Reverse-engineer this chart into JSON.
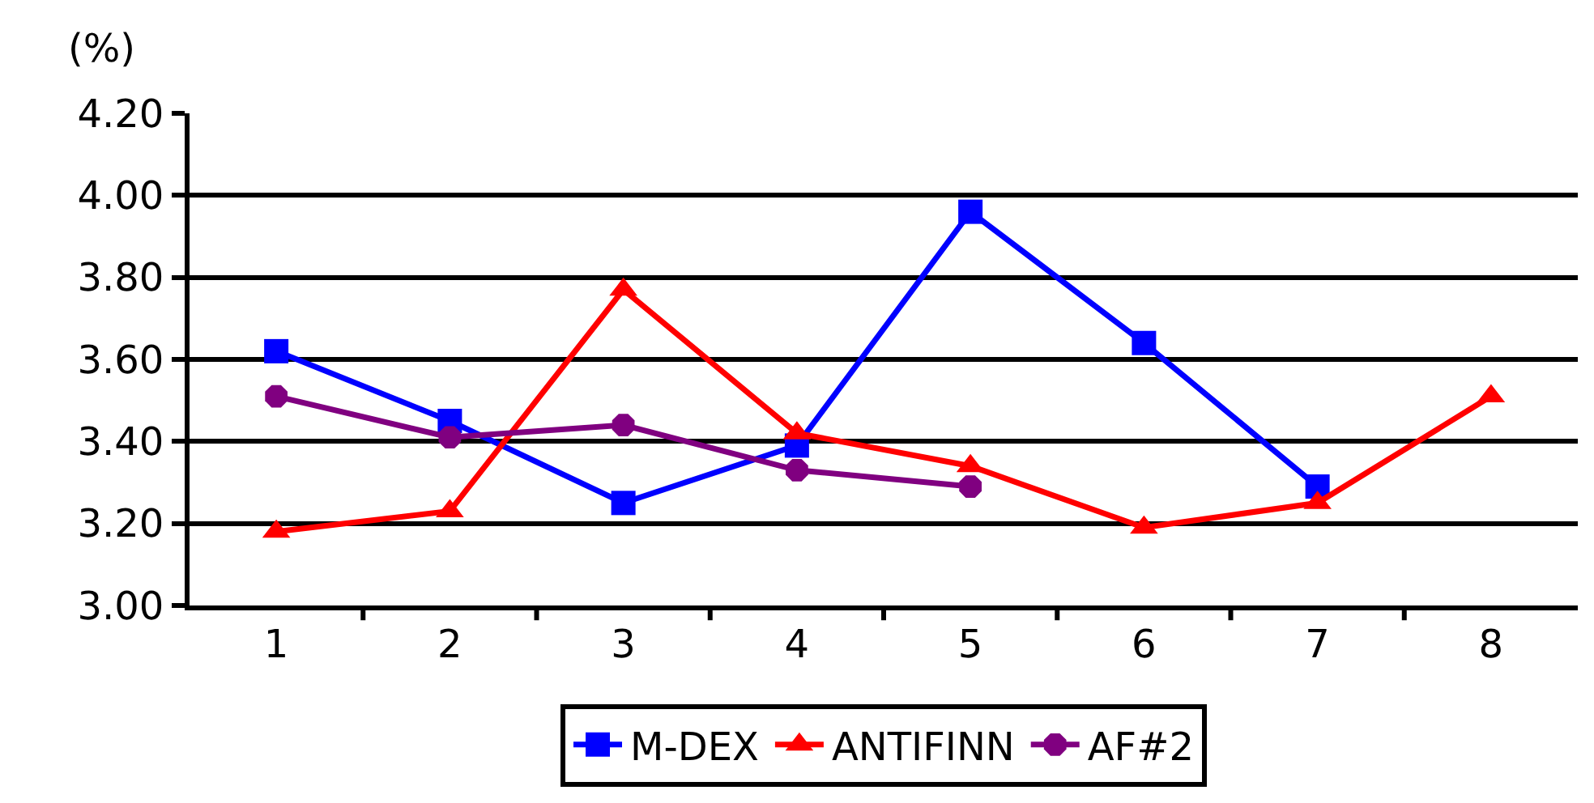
{
  "chart_data": {
    "type": "line",
    "ylabel": "(%)",
    "categories": [
      "1",
      "2",
      "3",
      "4",
      "5",
      "6",
      "7",
      "8"
    ],
    "series": [
      {
        "name": "M-DEX",
        "color": "#0000ff",
        "marker": "square",
        "values": [
          3.62,
          3.45,
          3.25,
          3.39,
          3.96,
          3.64,
          3.29,
          null
        ]
      },
      {
        "name": "ANTIFINN",
        "color": "#ff0000",
        "marker": "triangle",
        "values": [
          3.18,
          3.23,
          3.77,
          3.42,
          3.34,
          3.19,
          3.25,
          3.51
        ]
      },
      {
        "name": "AF#2",
        "color": "#800080",
        "marker": "circle",
        "values": [
          3.51,
          3.41,
          3.44,
          3.33,
          3.29,
          null,
          null,
          null
        ]
      }
    ],
    "ylim": [
      3.0,
      4.2
    ],
    "yticks": [
      {
        "value": 3.0,
        "label": "3.00"
      },
      {
        "value": 3.2,
        "label": "3.20"
      },
      {
        "value": 3.4,
        "label": "3.40"
      },
      {
        "value": 3.6,
        "label": "3.60"
      },
      {
        "value": 3.8,
        "label": "3.80"
      },
      {
        "value": 4.0,
        "label": "4.00"
      },
      {
        "value": 4.2,
        "label": "4.20"
      }
    ],
    "grid": "y",
    "legend": "bottom",
    "line_style": "solid"
  }
}
